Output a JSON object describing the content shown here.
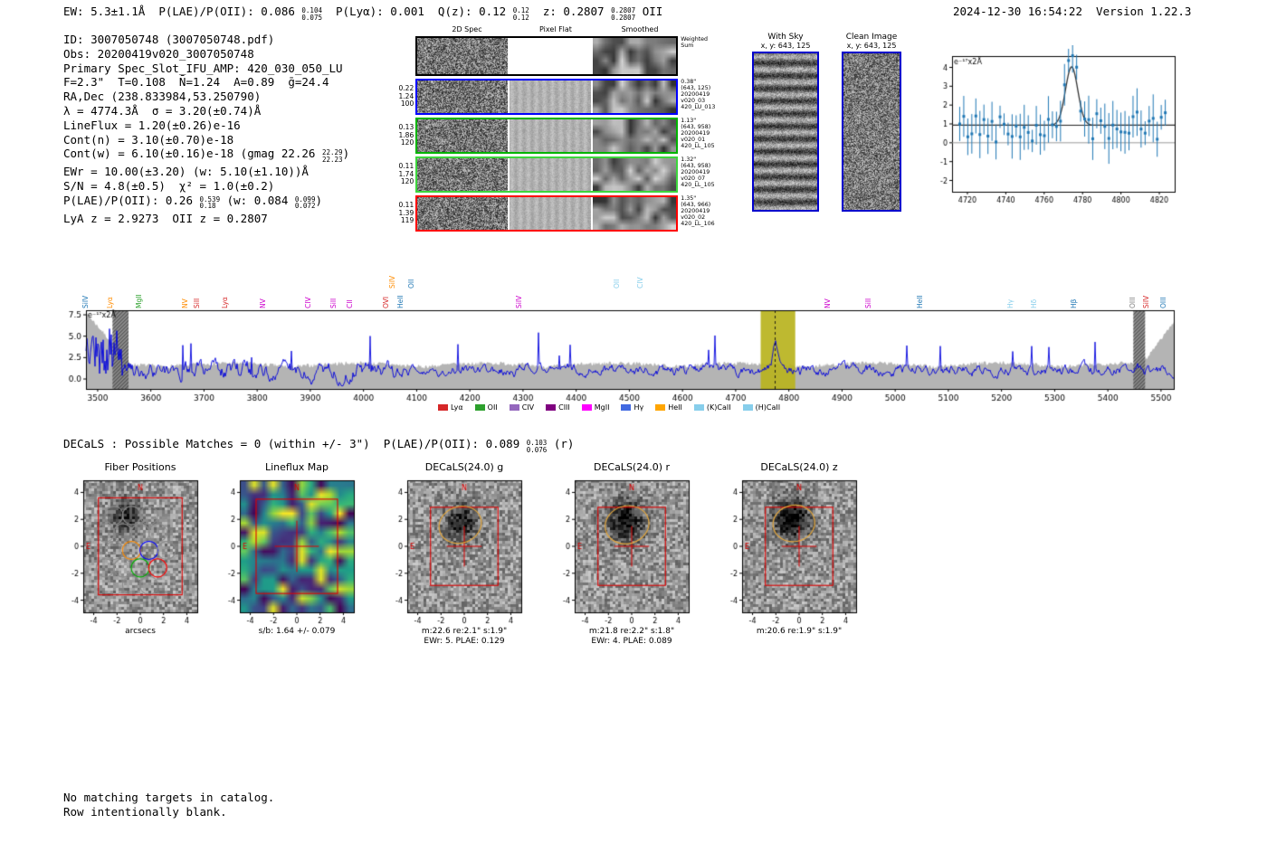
{
  "header": {
    "left": [
      {
        "t": "EW: 5.3±1.1Å  P(LAE)/P(OII): 0.086 "
      },
      {
        "up": "0.104",
        "down": "0.075"
      },
      {
        "t": "  P(Lyα): 0.001  Q(z): 0.12 "
      },
      {
        "up": "0.12",
        "down": "0.12"
      },
      {
        "t": "  z: 0.2807 "
      },
      {
        "up": "0.2807",
        "down": "0.2807"
      },
      {
        "t": " OII"
      }
    ],
    "right": "2024-12-30 16:54:22  Version 1.22.3"
  },
  "info": {
    "lines": [
      [
        {
          "t": "ID: 3007050748 (3007050748.pdf)"
        }
      ],
      [
        {
          "t": "Obs: 20200419v020_3007050748"
        }
      ],
      [
        {
          "t": "Primary Spec_Slot_IFU_AMP: 420_030_050_LU"
        }
      ],
      [
        {
          "t": "F=2.3\"  T=0.108  N̄=1.24  A=0.89  ḡ=24.4"
        }
      ],
      [
        {
          "t": "RA,Dec (238.833984,53.250790)"
        }
      ],
      [
        {
          "t": "λ = 4774.3Å  σ = 3.20(±0.74)Å"
        }
      ],
      [
        {
          "t": "LineFlux = 1.20(±0.26)e-16"
        }
      ],
      [
        {
          "t": "Cont(n) = 3.10(±0.70)e-18"
        }
      ],
      [
        {
          "t": "Cont(w) = 6.10(±0.16)e-18 (gmag 22.26 "
        },
        {
          "up": "22.29",
          "down": "22.23"
        },
        {
          "t": ")"
        }
      ],
      [
        {
          "t": "EWr = 10.00(±3.20) (w: 5.10(±1.10))Å"
        }
      ],
      [
        {
          "t": "S/N = 4.8(±0.5)  χ² = 1.0(±0.2)"
        }
      ],
      [
        {
          "t": "P(LAE)/P(OII): 0.26 "
        },
        {
          "up": "0.539",
          "down": "0.18"
        },
        {
          "t": " (w: 0.084 "
        },
        {
          "up": "0.099",
          "down": "0.072"
        },
        {
          "t": ")"
        }
      ],
      [
        {
          "t": "LyA z = 2.9273  OII z = 0.2807"
        }
      ]
    ]
  },
  "spec2d": {
    "col_headers": [
      "2D Spec",
      "Pixel Flat",
      "Smoothed"
    ],
    "rows": [
      {
        "color": "#000000",
        "left": [],
        "right": [
          "Weighted",
          "Sum"
        ]
      },
      {
        "color": "#0000ff",
        "left": [
          "0.22",
          "1.24",
          "100"
        ],
        "right": [
          "0.38\"",
          "(643, 125)",
          "20200419",
          "v020_03",
          "420_LU_013"
        ]
      },
      {
        "color": "#00b400",
        "left": [
          "0.13",
          "1.86",
          "120"
        ],
        "right": [
          "1.13\"",
          "(643, 958)",
          "20200419",
          "v020_01",
          "420_LL_105"
        ]
      },
      {
        "color": "#3cd63c",
        "left": [
          "0.11",
          "1.74",
          "120"
        ],
        "right": [
          "1.32\"",
          "(643, 958)",
          "20200419",
          "v020_07",
          "420_LL_105"
        ]
      },
      {
        "color": "#ff0000",
        "left": [
          "0.11",
          "1.39",
          "119"
        ],
        "right": [
          "1.35\"",
          "(643, 966)",
          "20200419",
          "v020_02",
          "420_LL_106"
        ]
      }
    ]
  },
  "with_sky": {
    "title": "With Sky",
    "subtitle": "x, y: 643, 125"
  },
  "clean": {
    "title": "Clean Image",
    "subtitle": "x, y: 643, 125"
  },
  "decals_line": [
    {
      "t": "DECaLS : Possible Matches = 0 (within +/- 3\")  P(LAE)/P(OII): 0.089 "
    },
    {
      "up": "0.103",
      "down": "0.076"
    },
    {
      "t": " (r)"
    }
  ],
  "footer": [
    "No matching targets in catalog.",
    "Row intentionally blank."
  ],
  "chart_data": [
    {
      "id": "line_fit_inset",
      "type": "scatter",
      "note": "e⁻¹⁷x2Å",
      "xlim": [
        4712,
        4828
      ],
      "ylim": [
        -2.6,
        4.6
      ],
      "xticks": [
        4720,
        4740,
        4760,
        4780,
        4800,
        4820
      ],
      "yticks": [
        -2,
        -1,
        0,
        1,
        2,
        3,
        4
      ],
      "gaussian": {
        "center": 4774.3,
        "sigma": 3.2,
        "amplitude": 3.1,
        "baseline": 0.93
      },
      "point_color": "#1f77b4",
      "fit_color": "#333333"
    },
    {
      "id": "full_spectrum",
      "type": "line",
      "units": "e⁻¹⁷x2Å",
      "xlim": [
        3478,
        5524
      ],
      "ylim": [
        -1.16,
        8.03
      ],
      "xticks": [
        3500,
        3600,
        3700,
        3800,
        3900,
        4000,
        4100,
        4200,
        4300,
        4400,
        4500,
        4600,
        4700,
        4800,
        4900,
        5000,
        5100,
        5200,
        5300,
        5400,
        5500
      ],
      "yticks": [
        0.0,
        2.5,
        5.0,
        7.5
      ],
      "line_color": "#0000dd",
      "noise_color": "#b4b4b4",
      "emission_peak": {
        "center": 4774.3,
        "band": [
          4747,
          4812
        ],
        "band_color": "#b8b31e"
      },
      "hatched_regions": [
        [
          3528,
          3558
        ],
        [
          5448,
          5470
        ]
      ],
      "line_labels": [
        {
          "x": 3485,
          "label": "SiIV",
          "color": "#1f77b4"
        },
        {
          "x": 3530,
          "label": "Lyα",
          "color": "#ff8c00"
        },
        {
          "x": 3585,
          "label": "MgII",
          "color": "#2ca02c"
        },
        {
          "x": 3672,
          "label": "NV",
          "color": "#ff8c00"
        },
        {
          "x": 3695,
          "label": "SiII",
          "color": "#d62728"
        },
        {
          "x": 3747,
          "label": "Lyα",
          "color": "#d62728"
        },
        {
          "x": 3818,
          "label": "NV",
          "color": "#cc00cc"
        },
        {
          "x": 3903,
          "label": "CIV",
          "color": "#cc00cc"
        },
        {
          "x": 3952,
          "label": "SiII",
          "color": "#cc00cc"
        },
        {
          "x": 3982,
          "label": "CII",
          "color": "#cc00cc"
        },
        {
          "x": 4050,
          "label": "OVI",
          "color": "#d62728"
        },
        {
          "x": 4062,
          "label": "SiIV",
          "color": "#ff8c00",
          "raise": true
        },
        {
          "x": 4078,
          "label": "HeII",
          "color": "#1f77b4"
        },
        {
          "x": 4098,
          "label": "OII",
          "color": "#1f77b4",
          "raise": true
        },
        {
          "x": 4300,
          "label": "SiIV",
          "color": "#cc00cc"
        },
        {
          "x": 4484,
          "label": "OII",
          "color": "#87ceeb",
          "raise": true
        },
        {
          "x": 4528,
          "label": "CIV",
          "color": "#87ceeb",
          "raise": true
        },
        {
          "x": 4880,
          "label": "NV",
          "color": "#cc00cc"
        },
        {
          "x": 4958,
          "label": "SiII",
          "color": "#cc00cc"
        },
        {
          "x": 5055,
          "label": "HeII",
          "color": "#1f77b4"
        },
        {
          "x": 5225,
          "label": "Hγ",
          "color": "#87ceeb"
        },
        {
          "x": 5268,
          "label": "Hδ",
          "color": "#87ceeb"
        },
        {
          "x": 5344,
          "label": "Hβ",
          "color": "#1f77b4"
        },
        {
          "x": 5455,
          "label": "OIII",
          "color": "#808080"
        },
        {
          "x": 5480,
          "label": "SiIV",
          "color": "#d62728"
        },
        {
          "x": 5512,
          "label": "OIII",
          "color": "#1f77b4"
        }
      ],
      "legend": [
        {
          "label": "Lyα",
          "color": "#d62728"
        },
        {
          "label": "OII",
          "color": "#2ca02c"
        },
        {
          "label": "CIV",
          "color": "#9467bd"
        },
        {
          "label": "CIII",
          "color": "#7f007f"
        },
        {
          "label": "MgII",
          "color": "#ff00ff"
        },
        {
          "label": "Hγ",
          "color": "#4169e1"
        },
        {
          "label": "HeII",
          "color": "#ffa500"
        },
        {
          "label": "(K)CaII",
          "color": "#87ceeb"
        },
        {
          "label": "(H)CaII",
          "color": "#87ceeb"
        }
      ]
    },
    {
      "id": "fiber_positions",
      "type": "heatmap",
      "style": "gray_blocky",
      "title": "Fiber Positions",
      "xlabel": "arcsecs",
      "xticks": [
        -4,
        -2,
        0,
        2,
        4
      ],
      "yticks": [
        -4,
        -2,
        0,
        2,
        4
      ],
      "lim": 4.9,
      "box": 3.6,
      "seed": 301,
      "blob": {
        "x": 0.36,
        "y": 0.26,
        "a": -120,
        "s": 0.09
      },
      "compass": {
        "n": "N",
        "e": "E"
      },
      "fibers": {
        "radius": 0.78,
        "color": "#8a8a8a",
        "positions": [
          [
            -2.25,
            2.3
          ],
          [
            -0.75,
            2.3
          ],
          [
            0.75,
            2.3
          ],
          [
            -3.0,
            1.0
          ],
          [
            -1.5,
            1.0
          ],
          [
            0,
            1.0
          ],
          [
            1.5,
            1.0
          ],
          [
            -2.25,
            -0.3
          ],
          [
            -0.75,
            -0.3
          ],
          [
            0.75,
            -0.3
          ],
          [
            2.25,
            -0.3
          ],
          [
            -3.0,
            -1.6
          ],
          [
            -1.5,
            -1.6
          ],
          [
            0,
            -1.6
          ],
          [
            1.5,
            -1.6
          ],
          [
            -0.75,
            -2.9
          ],
          [
            0.75,
            -2.9
          ]
        ],
        "colored": [
          {
            "index": 8,
            "color": "#ff8c00"
          },
          {
            "index": 9,
            "color": "#0000ff"
          },
          {
            "index": 13,
            "color": "#00b000"
          },
          {
            "index": 14,
            "color": "#ff0000"
          }
        ]
      }
    },
    {
      "id": "lineflux_map",
      "type": "heatmap",
      "style": "viridis",
      "title": "Lineflux Map",
      "xlabel": "s/b: 1.64 +/- 0.079",
      "xticks": [
        -4,
        -2,
        0,
        2,
        4
      ],
      "yticks": [
        -4,
        -2,
        0,
        2,
        4
      ],
      "lim": 4.9,
      "box": 3.5,
      "cross": 1.9,
      "seed": 502,
      "compass": {
        "n": "N",
        "e": "E"
      }
    },
    {
      "id": "decals_g",
      "type": "heatmap",
      "style": "gray_blocky",
      "title": "DECaLS(24.0) g",
      "xlabel": "m:22.6 re:2.1\" s:1.9\"",
      "xlabel2": "EWr: 5. PLAE: 0.129",
      "xticks": [
        -4,
        -2,
        0,
        2,
        4
      ],
      "yticks": [
        -4,
        -2,
        0,
        2,
        4
      ],
      "lim": 4.9,
      "box": 2.9,
      "cross": 1.5,
      "seed": 603,
      "blob": {
        "x": 0.46,
        "y": 0.31,
        "a": -130,
        "s": 0.1
      },
      "ellipse": {
        "cx": -0.35,
        "cy": 1.6,
        "rx": 1.85,
        "ry": 1.35,
        "rot": -20,
        "color": "#e2a63d"
      },
      "compass": {
        "n": "N",
        "e": "E"
      }
    },
    {
      "id": "decals_r",
      "type": "heatmap",
      "style": "gray_blocky",
      "title": "DECaLS(24.0) r",
      "xlabel": "m:21.8 re:2.2\" s:1.8\"",
      "xlabel2": "EWr: 4. PLAE: 0.089",
      "xticks": [
        -4,
        -2,
        0,
        2,
        4
      ],
      "yticks": [
        -4,
        -2,
        0,
        2,
        4
      ],
      "lim": 4.9,
      "box": 2.9,
      "cross": 1.5,
      "seed": 604,
      "blob": {
        "x": 0.44,
        "y": 0.3,
        "a": -150,
        "s": 0.11
      },
      "ellipse": {
        "cx": -0.4,
        "cy": 1.6,
        "rx": 1.9,
        "ry": 1.4,
        "rot": -15,
        "color": "#e2a63d"
      },
      "compass": {
        "n": "N",
        "e": "E"
      }
    },
    {
      "id": "decals_z",
      "type": "heatmap",
      "style": "gray_blocky",
      "title": "DECaLS(24.0) z",
      "xlabel": "m:20.6 re:1.9\" s:1.9\"",
      "xticks": [
        -4,
        -2,
        0,
        2,
        4
      ],
      "yticks": [
        -4,
        -2,
        0,
        2,
        4
      ],
      "lim": 4.9,
      "box": 2.9,
      "cross": 1.5,
      "seed": 605,
      "blob": {
        "x": 0.42,
        "y": 0.28,
        "a": -160,
        "s": 0.11
      },
      "ellipse": {
        "cx": -0.45,
        "cy": 1.7,
        "rx": 1.8,
        "ry": 1.35,
        "rot": -10,
        "color": "#e2a63d"
      },
      "compass": {
        "n": "N",
        "e": "E"
      }
    }
  ]
}
